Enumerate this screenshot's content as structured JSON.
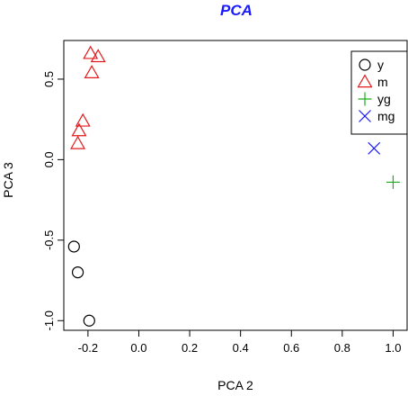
{
  "chart_data": {
    "type": "scatter",
    "title": "PCA",
    "title_color": "#1a1aff",
    "xlabel": "PCA 2",
    "ylabel": "PCA 3",
    "xlim": [
      -0.295,
      1.055
    ],
    "ylim": [
      -1.06,
      0.74
    ],
    "xticks": [
      {
        "value": -0.2,
        "label": "-0.2"
      },
      {
        "value": 0.0,
        "label": "0.0"
      },
      {
        "value": 0.2,
        "label": "0.2"
      },
      {
        "value": 0.4,
        "label": "0.4"
      },
      {
        "value": 0.6,
        "label": "0.6"
      },
      {
        "value": 0.8,
        "label": "0.8"
      },
      {
        "value": 1.0,
        "label": "1.0"
      }
    ],
    "yticks": [
      {
        "value": -1.0,
        "label": "-1.0"
      },
      {
        "value": -0.5,
        "label": "-0.5"
      },
      {
        "value": 0.0,
        "label": "0.0"
      },
      {
        "value": 0.5,
        "label": "0.5"
      }
    ],
    "grid": false,
    "legend_position": "top-right",
    "series": [
      {
        "name": "y",
        "marker": "circle",
        "color": "#000000",
        "points": [
          [
            -0.255,
            -0.54
          ],
          [
            -0.24,
            -0.7
          ],
          [
            -0.195,
            -1.0
          ]
        ]
      },
      {
        "name": "m",
        "marker": "triangle",
        "color": "#e31a1c",
        "points": [
          [
            -0.19,
            0.66
          ],
          [
            -0.16,
            0.64
          ],
          [
            -0.185,
            0.54
          ],
          [
            -0.22,
            0.24
          ],
          [
            -0.235,
            0.18
          ],
          [
            -0.24,
            0.1
          ]
        ]
      },
      {
        "name": "yg",
        "marker": "plus",
        "color": "#1aaf1a",
        "points": [
          [
            1.0,
            -0.14
          ]
        ]
      },
      {
        "name": "mg",
        "marker": "cross",
        "color": "#1a1aff",
        "points": [
          [
            0.925,
            0.07
          ]
        ]
      }
    ]
  }
}
